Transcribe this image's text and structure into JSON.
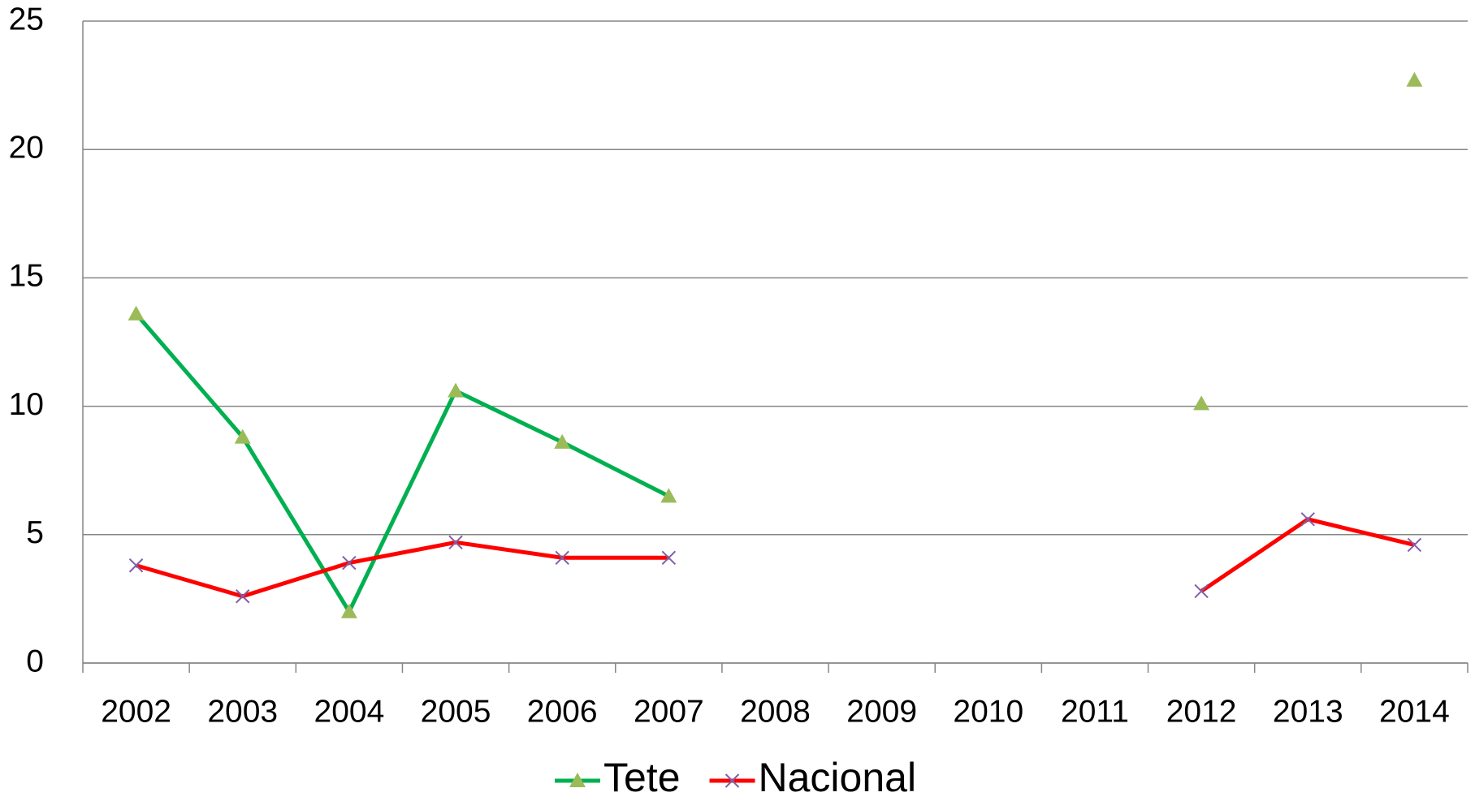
{
  "chart_data": {
    "type": "line",
    "categories": [
      "2002",
      "2003",
      "2004",
      "2005",
      "2006",
      "2007",
      "2008",
      "2009",
      "2010",
      "2011",
      "2012",
      "2013",
      "2014"
    ],
    "series": [
      {
        "name": "Tete",
        "color": "#00b050",
        "marker": "triangle",
        "marker_color": "#9bbb59",
        "values": [
          13.6,
          8.8,
          2.0,
          10.6,
          8.6,
          6.5,
          null,
          null,
          null,
          null,
          10.1,
          null,
          22.7
        ]
      },
      {
        "name": "Nacional",
        "color": "#ff0000",
        "marker": "x",
        "marker_color": "#7f60a8",
        "values": [
          3.8,
          2.6,
          3.9,
          4.7,
          4.1,
          4.1,
          null,
          null,
          null,
          null,
          2.8,
          5.6,
          4.6
        ]
      }
    ],
    "ylim": [
      0,
      25
    ],
    "yticks": [
      0,
      5,
      10,
      15,
      20,
      25
    ],
    "grid": true,
    "legend": "bottom"
  }
}
